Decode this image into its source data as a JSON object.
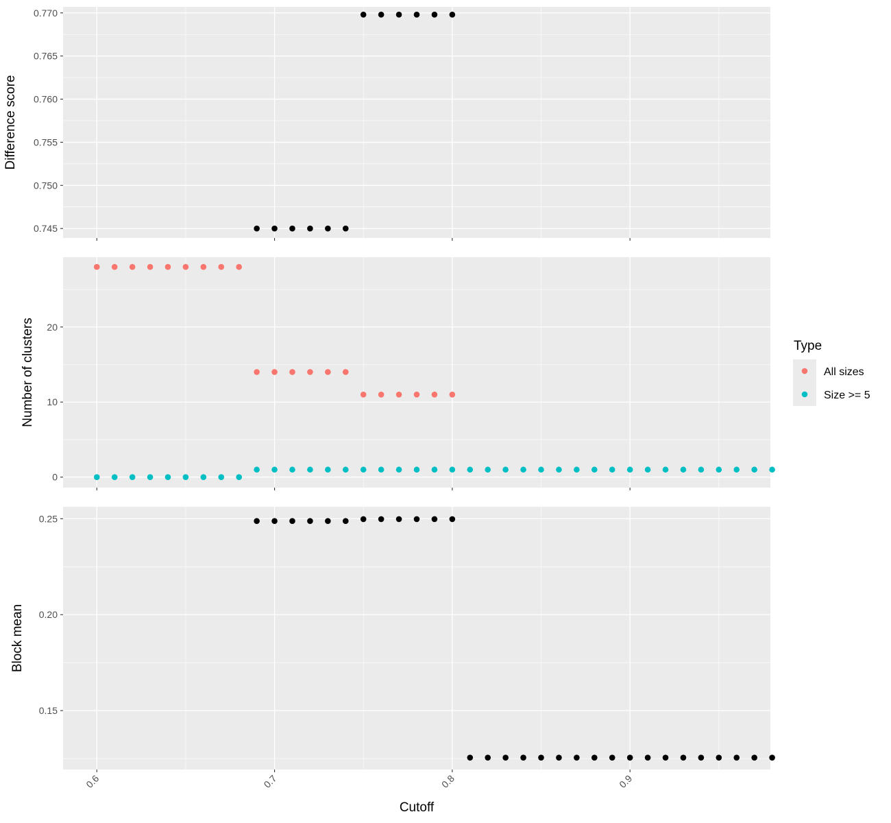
{
  "chart_data": {
    "type": "scatter",
    "xlabel": "Cutoff",
    "x_ticks": [
      "0.6",
      "0.7",
      "0.8",
      "0.9"
    ],
    "xlim": [
      0.581,
      0.979
    ],
    "background_color": "#ebebeb",
    "grid_color": "#ffffff",
    "point_color": "#000000",
    "legend": {
      "title": "Type",
      "placement": "right",
      "items": [
        {
          "label": "All sizes",
          "color": "#f8766d"
        },
        {
          "label": "Size >= 5",
          "color": "#00bfc4"
        }
      ]
    },
    "panels": [
      {
        "ylabel": "Difference score",
        "ylim": [
          0.7439,
          0.7707
        ],
        "y_ticks": [
          "0.745",
          "0.750",
          "0.755",
          "0.760",
          "0.765",
          "0.770"
        ],
        "series": [
          {
            "x": [
              0.69,
              0.7,
              0.71,
              0.72,
              0.73,
              0.74,
              0.75,
              0.76,
              0.77,
              0.78,
              0.79,
              0.8
            ],
            "y": [
              0.745,
              0.745,
              0.745,
              0.745,
              0.745,
              0.745,
              0.7698,
              0.7698,
              0.7698,
              0.7698,
              0.7698,
              0.7698
            ]
          }
        ]
      },
      {
        "ylabel": "Number of clusters",
        "ylim": [
          -1.4,
          29.3
        ],
        "y_ticks": [
          "0",
          "10",
          "20"
        ],
        "series": [
          {
            "name": "All sizes",
            "color": "#f8766d",
            "x": [
              0.6,
              0.61,
              0.62,
              0.63,
              0.64,
              0.65,
              0.66,
              0.67,
              0.68,
              0.69,
              0.7,
              0.71,
              0.72,
              0.73,
              0.74,
              0.75,
              0.76,
              0.77,
              0.78,
              0.79,
              0.8
            ],
            "y": [
              28,
              28,
              28,
              28,
              28,
              28,
              28,
              28,
              28,
              14,
              14,
              14,
              14,
              14,
              14,
              11,
              11,
              11,
              11,
              11,
              11
            ]
          },
          {
            "name": "Size >= 5",
            "color": "#00bfc4",
            "x": [
              0.6,
              0.61,
              0.62,
              0.63,
              0.64,
              0.65,
              0.66,
              0.67,
              0.68,
              0.69,
              0.7,
              0.71,
              0.72,
              0.73,
              0.74,
              0.75,
              0.76,
              0.77,
              0.78,
              0.79,
              0.8,
              0.81,
              0.82,
              0.83,
              0.84,
              0.85,
              0.86,
              0.87,
              0.88,
              0.89,
              0.9,
              0.91,
              0.92,
              0.93,
              0.94,
              0.95,
              0.96,
              0.97,
              0.98
            ],
            "y": [
              0,
              0,
              0,
              0,
              0,
              0,
              0,
              0,
              0,
              1,
              1,
              1,
              1,
              1,
              1,
              1,
              1,
              1,
              1,
              1,
              1,
              1,
              1,
              1,
              1,
              1,
              1,
              1,
              1,
              1,
              1,
              1,
              1,
              1,
              1,
              1,
              1,
              1,
              1
            ]
          }
        ]
      },
      {
        "ylabel": "Block mean",
        "ylim": [
          0.1193,
          0.2562
        ],
        "y_ticks": [
          "0.15",
          "0.20",
          "0.25"
        ],
        "series": [
          {
            "x": [
              0.69,
              0.7,
              0.71,
              0.72,
              0.73,
              0.74,
              0.75,
              0.76,
              0.77,
              0.78,
              0.79,
              0.8,
              0.81,
              0.82,
              0.83,
              0.84,
              0.85,
              0.86,
              0.87,
              0.88,
              0.89,
              0.9,
              0.91,
              0.92,
              0.93,
              0.94,
              0.95,
              0.96,
              0.97,
              0.98
            ],
            "y": [
              0.2488,
              0.2488,
              0.2488,
              0.2488,
              0.2488,
              0.2488,
              0.2498,
              0.2498,
              0.2498,
              0.2498,
              0.2498,
              0.2498,
              0.1255,
              0.1255,
              0.1255,
              0.1255,
              0.1255,
              0.1255,
              0.1255,
              0.1255,
              0.1255,
              0.1255,
              0.1255,
              0.1255,
              0.1255,
              0.1255,
              0.1255,
              0.1255,
              0.1255,
              0.1255
            ]
          }
        ]
      }
    ]
  }
}
